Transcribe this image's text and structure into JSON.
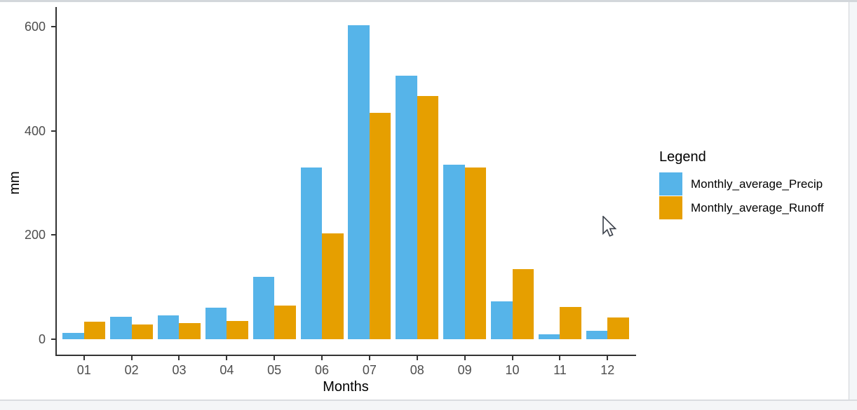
{
  "window": {
    "pane_background": "#ffffff",
    "chrome_strip_color": "#f4f6f8",
    "chrome_border_color": "#d3d7db"
  },
  "chart_data": {
    "type": "bar",
    "title": "",
    "xlabel": "Months",
    "ylabel": "mm",
    "categories": [
      "01",
      "02",
      "03",
      "04",
      "05",
      "06",
      "07",
      "08",
      "09",
      "10",
      "11",
      "12"
    ],
    "series": [
      {
        "name": "Monthly_average_Precip",
        "color": "#56B4E9",
        "values": [
          12,
          43,
          46,
          60,
          120,
          329,
          603,
          506,
          335,
          72,
          9,
          16
        ]
      },
      {
        "name": "Monthly_average_Runoff",
        "color": "#E69F00",
        "values": [
          34,
          28,
          31,
          35,
          65,
          203,
          435,
          467,
          330,
          135,
          62,
          42
        ]
      }
    ],
    "yticks": [
      0,
      200,
      400,
      600
    ],
    "ylim": [
      -30,
      637
    ],
    "grid": false,
    "legend": {
      "title": "Legend",
      "position": "right",
      "entries": [
        "Monthly_average_Precip",
        "Monthly_average_Runoff"
      ]
    }
  },
  "cursor": {
    "type": "arrow-pointer",
    "visible": true
  }
}
